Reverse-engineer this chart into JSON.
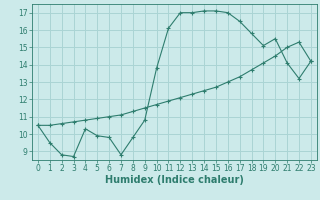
{
  "line1_x": [
    0,
    1,
    2,
    3,
    4,
    5,
    6,
    7,
    8,
    9,
    10,
    11,
    12,
    13,
    14,
    15,
    16,
    17,
    18,
    19,
    20,
    21,
    22,
    23
  ],
  "line1_y": [
    10.5,
    9.5,
    8.8,
    8.7,
    10.3,
    9.9,
    9.8,
    8.8,
    9.8,
    10.8,
    13.8,
    16.1,
    17.0,
    17.0,
    17.1,
    17.1,
    17.0,
    16.5,
    15.8,
    15.1,
    15.5,
    14.1,
    13.2,
    14.2
  ],
  "line2_x": [
    0,
    1,
    2,
    3,
    4,
    5,
    6,
    7,
    8,
    9,
    10,
    11,
    12,
    13,
    14,
    15,
    16,
    17,
    18,
    19,
    20,
    21,
    22,
    23
  ],
  "line2_y": [
    10.5,
    10.5,
    10.6,
    10.7,
    10.8,
    10.9,
    11.0,
    11.1,
    11.3,
    11.5,
    11.7,
    11.9,
    12.1,
    12.3,
    12.5,
    12.7,
    13.0,
    13.3,
    13.7,
    14.1,
    14.5,
    15.0,
    15.3,
    14.2
  ],
  "line_color": "#2e7d6e",
  "bg_color": "#cceaea",
  "grid_color": "#aad4d4",
  "xlabel": "Humidex (Indice chaleur)",
  "ylim": [
    8.5,
    17.5
  ],
  "xlim": [
    -0.5,
    23.5
  ],
  "yticks": [
    9,
    10,
    11,
    12,
    13,
    14,
    15,
    16,
    17
  ],
  "xticks": [
    0,
    1,
    2,
    3,
    4,
    5,
    6,
    7,
    8,
    9,
    10,
    11,
    12,
    13,
    14,
    15,
    16,
    17,
    18,
    19,
    20,
    21,
    22,
    23
  ],
  "tick_fontsize": 5.5,
  "xlabel_fontsize": 7.0
}
